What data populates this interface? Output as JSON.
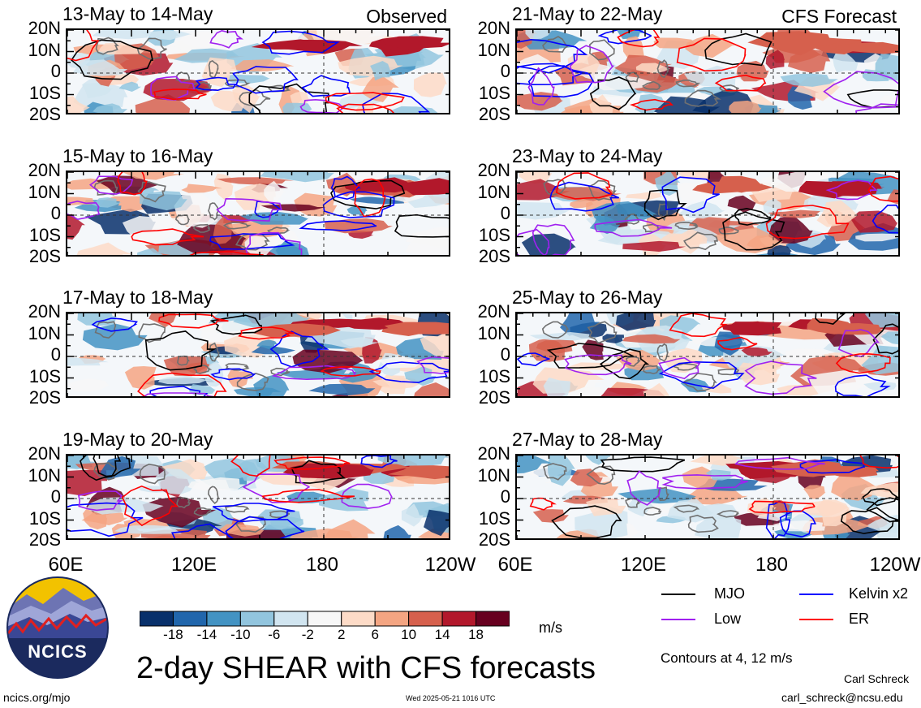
{
  "panels": [
    {
      "date": "13-May to 14-May",
      "tag": "Observed",
      "seed": 11,
      "mjo": 0.3,
      "kelvin": 0.9,
      "low": 0.6,
      "er": 0.8
    },
    {
      "date": "21-May to 22-May",
      "tag": "CFS Forecast",
      "seed": 21,
      "mjo": 0.5,
      "kelvin": 0.8,
      "low": 0.7,
      "er": 0.7
    },
    {
      "date": "15-May to 16-May",
      "tag": "",
      "seed": 31,
      "mjo": 0.3,
      "kelvin": 0.9,
      "low": 0.7,
      "er": 0.8
    },
    {
      "date": "23-May to 24-May",
      "tag": "",
      "seed": 41,
      "mjo": 0.6,
      "kelvin": 0.6,
      "low": 0.7,
      "er": 0.6
    },
    {
      "date": "17-May to 18-May",
      "tag": "",
      "seed": 51,
      "mjo": 0.3,
      "kelvin": 0.9,
      "low": 0.6,
      "er": 0.8
    },
    {
      "date": "25-May to 26-May",
      "tag": "",
      "seed": 61,
      "mjo": 0.8,
      "kelvin": 0.5,
      "low": 0.7,
      "er": 0.6
    },
    {
      "date": "19-May to 20-May",
      "tag": "",
      "seed": 71,
      "mjo": 0.4,
      "kelvin": 0.9,
      "low": 0.6,
      "er": 0.8
    },
    {
      "date": "27-May to 28-May",
      "tag": "",
      "seed": 81,
      "mjo": 0.9,
      "kelvin": 0.5,
      "low": 0.6,
      "er": 0.6
    }
  ],
  "lat_labels": [
    "20N",
    "10N",
    "0",
    "10S",
    "20S"
  ],
  "lon_labels": [
    "60E",
    "120E",
    "180",
    "120W"
  ],
  "colorbar": {
    "colors": [
      "#08306b",
      "#2166ac",
      "#4393c3",
      "#92c5de",
      "#d1e5f0",
      "#f7f7f7",
      "#fddbc7",
      "#f4a582",
      "#d6604d",
      "#b2182b",
      "#67001f"
    ],
    "labels": [
      "-18",
      "-14",
      "-10",
      "-6",
      "-2",
      "2",
      "6",
      "10",
      "14",
      "18"
    ],
    "units": "m/s"
  },
  "legend": {
    "items": [
      {
        "label": "MJO",
        "color": "#000000"
      },
      {
        "label": "Kelvin x2",
        "color": "#0000ff"
      },
      {
        "label": "Low",
        "color": "#a020f0"
      },
      {
        "label": "ER",
        "color": "#ff0000"
      }
    ],
    "contours_note": "Contours at 4, 12 m/s"
  },
  "title": "2-day SHEAR with CFS forecasts",
  "logo_text": "NCICS",
  "footer": {
    "left": "ncics.org/mjo",
    "center": "Wed 2025-05-21 1016 UTC",
    "author": "Carl Schreck",
    "email": "carl_schreck@ncsu.edu"
  }
}
